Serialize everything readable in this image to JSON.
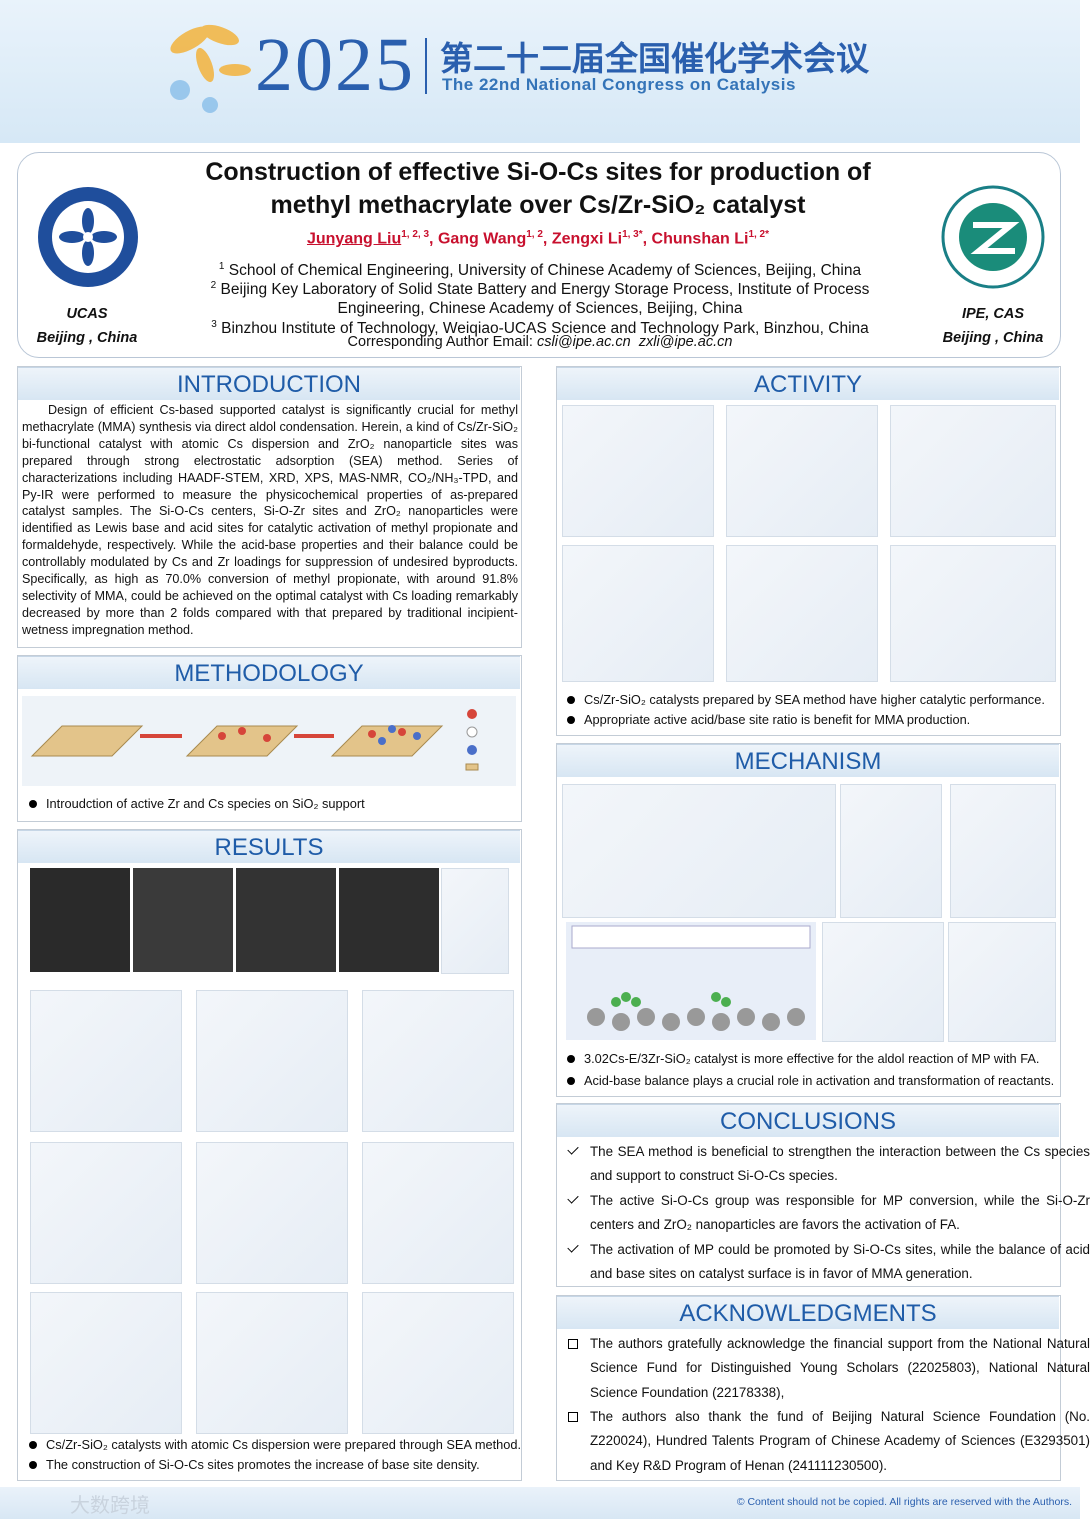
{
  "header": {
    "year": "2025",
    "title_cn": "第二十二届全国催化学术会议",
    "title_en": "The 22nd National Congress on Catalysis"
  },
  "poster": {
    "title": [
      "Construction of effective Si-O-Cs sites for production of",
      "methyl methacrylate over Cs/Zr-SiO₂ catalyst"
    ],
    "authors": [
      {
        "name": "Junyang Liu",
        "sup": "1, 2, 3"
      },
      {
        "name": "Gang Wang",
        "sup": "1, 2"
      },
      {
        "name": "Zengxi Li",
        "sup": "1, 3*"
      },
      {
        "name": "Chunshan Li",
        "sup": "1, 2*"
      }
    ],
    "author_separator": ",",
    "affiliations": [
      {
        "num": "1",
        "text": "School of Chemical Engineering, University of Chinese Academy of Sciences, Beijing, China"
      },
      {
        "num": "2",
        "text": "Beijing Key Laboratory of Solid State Battery and Energy Storage Process, Institute of Process Engineering, Chinese Academy of Sciences, Beijing, China"
      },
      {
        "num": "3",
        "text": "Binzhou Institute of Technology, Weiqiao-UCAS Science and Technology Park, Binzhou, China"
      }
    ],
    "email_label": "Corresponding Author Email:",
    "emails": [
      "csli@ipe.ac.cn",
      "zxli@ipe.ac.cn"
    ],
    "left_logo": {
      "name": "UCAS",
      "place": "Beijing , China"
    },
    "right_logo": {
      "name": "IPE, CAS",
      "place": "Beijing , China"
    }
  },
  "introduction": {
    "heading": "INTRODUCTION",
    "text": "Design of efficient Cs-based supported catalyst is significantly crucial for methyl methacrylate (MMA) synthesis via direct aldol condensation. Herein, a kind of Cs/Zr-SiO₂ bi-functional catalyst with atomic Cs dispersion and ZrO₂ nanoparticle sites was prepared through strong electrostatic adsorption (SEA) method. Series of characterizations including HAADF-STEM, XRD, XPS, MAS-NMR, CO₂/NH₃-TPD, and Py-IR were performed to measure the physicochemical properties of as-prepared catalyst samples. The Si-O-Cs centers, Si-O-Zr sites and ZrO₂ nanoparticles were identified as Lewis base and acid sites for catalytic activation of methyl propionate and formaldehyde, respectively. While the acid-base properties and their balance could be controllably modulated by Cs and Zr loadings for suppression of undesired byproducts. Specifically, as high as 70.0% conversion of methyl propionate, with around 91.8% selectivity of MMA, could be achieved on the optimal catalyst with Cs loading remarkably decreased by more than 2 folds compared with that prepared by traditional incipient-wetness impregnation method."
  },
  "methodology": {
    "heading": "METHODOLOGY",
    "bullets": [
      "Introudction of active Zr and Cs species on SiO₂ support"
    ]
  },
  "results": {
    "heading": "RESULTS",
    "bullets": [
      "Cs/Zr-SiO₂ catalysts with atomic Cs dispersion were prepared through SEA method.",
      "The construction of Si-O-Cs sites promotes the increase of  base site density."
    ]
  },
  "activity": {
    "heading": "ACTIVITY",
    "bullets": [
      "Cs/Zr-SiO₂ catalysts prepared by SEA method have higher catalytic performance.",
      "Appropriate active acid/base site ratio is benefit for MMA production."
    ]
  },
  "mechanism": {
    "heading": "MECHANISM",
    "bullets": [
      "3.02Cs-E/3Zr-SiO₂ catalyst is more effective for the aldol reaction of MP with FA.",
      "Acid-base balance plays a crucial role in activation and transformation of reactants."
    ]
  },
  "conclusions": {
    "heading": "CONCLUSIONS",
    "items": [
      "The SEA method is beneficial to strengthen the interaction between the Cs species and support to construct Si-O-Cs species.",
      "The active Si-O-Cs group was responsible for MP conversion, while the Si-O-Zr centers and ZrO₂ nanoparticles are favors the activation of FA.",
      "The activation of MP could be promoted by Si-O-Cs sites, while the balance of acid and base sites on catalyst surface is in favor of MMA generation."
    ]
  },
  "acknowledgments": {
    "heading": "ACKNOWLEDGMENTS",
    "items": [
      "The authors gratefully acknowledge the financial support from the National Natural Science Fund for Distinguished Young Scholars (22025803), National Natural Science Foundation (22178338),",
      "The authors also thank the fund of Beijing Natural Science Foundation (No. Z220024), Hundred Talents Program of Chinese Academy of Sciences (E3293501) and Key R&D Program of Henan (241111230500)."
    ]
  },
  "footer": {
    "copyright": "© Content should not be copied. All rights are reserved with the Authors.",
    "watermark": "大数跨境"
  }
}
